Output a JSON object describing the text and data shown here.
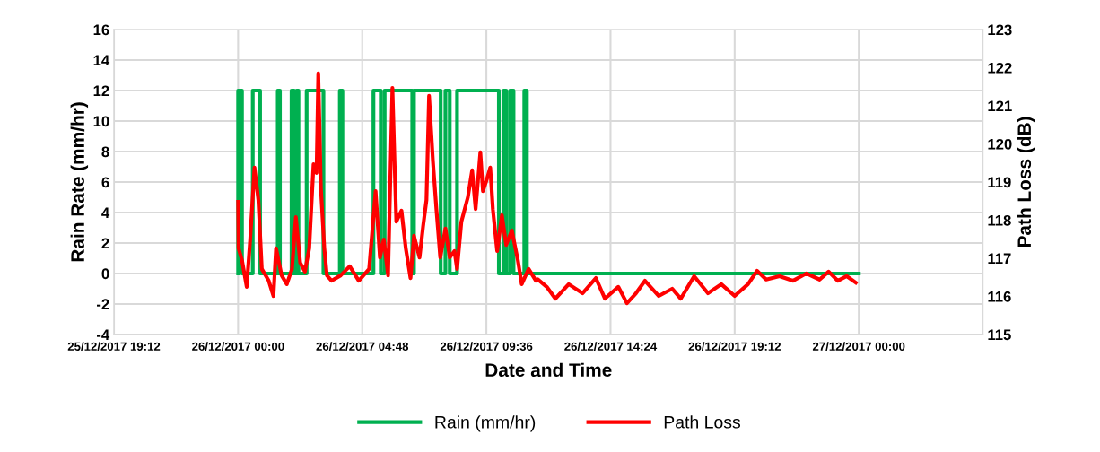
{
  "chart_data": {
    "type": "line",
    "xlabel": "Date and Time",
    "ylabel": "Rain Rate (mm/hr)",
    "y2label": "Path Loss (dB)",
    "xlim": [
      "2017-12-25T19:12",
      "2017-12-27T04:48"
    ],
    "xticks": [
      {
        "value": "2017-12-25T19:12",
        "label": "25/12/2017 19:12"
      },
      {
        "value": "2017-12-26T00:00",
        "label": "26/12/2017 00:00"
      },
      {
        "value": "2017-12-26T04:48",
        "label": "26/12/2017 04:48"
      },
      {
        "value": "2017-12-26T09:36",
        "label": "26/12/2017 09:36"
      },
      {
        "value": "2017-12-26T14:24",
        "label": "26/12/2017 14:24"
      },
      {
        "value": "2017-12-26T19:12",
        "label": "26/12/2017 19:12"
      },
      {
        "value": "2017-12-27T00:00",
        "label": "27/12/2017 00:00"
      }
    ],
    "ylim": [
      -4,
      16
    ],
    "yticks": [
      -4,
      -2,
      0,
      2,
      4,
      6,
      8,
      10,
      12,
      14,
      16
    ],
    "y2lim": [
      115,
      123
    ],
    "y2ticks": [
      115,
      116,
      117,
      118,
      119,
      120,
      121,
      122,
      123
    ],
    "grid": true,
    "legend": "bottom",
    "line_style": "solid",
    "marker": "none",
    "series": [
      {
        "name": "Rain (mm/hr)",
        "color": "#00b050",
        "x": [
          "2017-12-26T00:00",
          "2017-12-26T00:00",
          "2017-12-26T00:09",
          "2017-12-26T00:09",
          "2017-12-26T00:34",
          "2017-12-26T00:34",
          "2017-12-26T00:51",
          "2017-12-26T00:51",
          "2017-12-26T01:32",
          "2017-12-26T01:32",
          "2017-12-26T01:37",
          "2017-12-26T01:37",
          "2017-12-26T02:04",
          "2017-12-26T02:04",
          "2017-12-26T02:10",
          "2017-12-26T02:10",
          "2017-12-26T02:16",
          "2017-12-26T02:16",
          "2017-12-26T02:20",
          "2017-12-26T02:20",
          "2017-12-26T02:39",
          "2017-12-26T02:39",
          "2017-12-26T03:18",
          "2017-12-26T03:18",
          "2017-12-26T03:56",
          "2017-12-26T03:56",
          "2017-12-26T04:02",
          "2017-12-26T04:02",
          "2017-12-26T05:14",
          "2017-12-26T05:14",
          "2017-12-26T05:31",
          "2017-12-26T05:31",
          "2017-12-26T05:40",
          "2017-12-26T05:40",
          "2017-12-26T06:44",
          "2017-12-26T06:44",
          "2017-12-26T06:48",
          "2017-12-26T06:48",
          "2017-12-26T07:50",
          "2017-12-26T07:50",
          "2017-12-26T08:01",
          "2017-12-26T08:01",
          "2017-12-26T08:11",
          "2017-12-26T08:11",
          "2017-12-26T08:28",
          "2017-12-26T08:28",
          "2017-12-26T10:05",
          "2017-12-26T10:05",
          "2017-12-26T10:16",
          "2017-12-26T10:16",
          "2017-12-26T10:22",
          "2017-12-26T10:22",
          "2017-12-26T10:31",
          "2017-12-26T10:31",
          "2017-12-26T10:39",
          "2017-12-26T10:39",
          "2017-12-26T11:04",
          "2017-12-26T11:04",
          "2017-12-26T11:10",
          "2017-12-26T11:10",
          "2017-12-27T00:00"
        ],
        "values": [
          0,
          12,
          12,
          0,
          0,
          12,
          12,
          0,
          0,
          12,
          12,
          0,
          0,
          12,
          12,
          0,
          0,
          12,
          12,
          0,
          0,
          12,
          12,
          0,
          0,
          12,
          12,
          0,
          0,
          12,
          12,
          0,
          0,
          12,
          12,
          0,
          0,
          12,
          12,
          0,
          0,
          12,
          12,
          0,
          0,
          12,
          12,
          0,
          0,
          12,
          12,
          0,
          0,
          12,
          12,
          0,
          0,
          12,
          12,
          0,
          0
        ]
      },
      {
        "name": "Path Loss",
        "color": "#ff0000",
        "axis": "y2",
        "x": [
          "2017-12-26T00:00",
          "2017-12-26T00:01",
          "2017-12-26T00:09",
          "2017-12-26T00:20",
          "2017-12-26T00:28",
          "2017-12-26T00:38",
          "2017-12-26T00:47",
          "2017-12-26T00:55",
          "2017-12-26T01:11",
          "2017-12-26T01:22",
          "2017-12-26T01:28",
          "2017-12-26T01:41",
          "2017-12-26T01:53",
          "2017-12-26T02:05",
          "2017-12-26T02:14",
          "2017-12-26T02:24",
          "2017-12-26T02:35",
          "2017-12-26T02:45",
          "2017-12-26T02:55",
          "2017-12-26T03:02",
          "2017-12-26T03:06",
          "2017-12-26T03:12",
          "2017-12-26T03:20",
          "2017-12-26T03:26",
          "2017-12-26T03:37",
          "2017-12-26T03:58",
          "2017-12-26T04:19",
          "2017-12-26T04:40",
          "2017-12-26T05:04",
          "2017-12-26T05:19",
          "2017-12-26T05:29",
          "2017-12-26T05:38",
          "2017-12-26T05:48",
          "2017-12-26T05:58",
          "2017-12-26T06:07",
          "2017-12-26T06:19",
          "2017-12-26T06:29",
          "2017-12-26T06:40",
          "2017-12-26T06:48",
          "2017-12-26T07:01",
          "2017-12-26T07:09",
          "2017-12-26T07:17",
          "2017-12-26T07:23",
          "2017-12-26T07:32",
          "2017-12-26T07:40",
          "2017-12-26T07:49",
          "2017-12-26T08:01",
          "2017-12-26T08:11",
          "2017-12-26T08:22",
          "2017-12-26T08:28",
          "2017-12-26T08:38",
          "2017-12-26T08:53",
          "2017-12-26T09:03",
          "2017-12-26T09:11",
          "2017-12-26T09:22",
          "2017-12-26T09:28",
          "2017-12-26T09:37",
          "2017-12-26T09:45",
          "2017-12-26T09:51",
          "2017-12-26T10:01",
          "2017-12-26T10:12",
          "2017-12-26T10:22",
          "2017-12-26T10:35",
          "2017-12-26T10:49",
          "2017-12-26T10:58",
          "2017-12-26T11:14",
          "2017-12-26T11:31",
          "2017-12-26T11:35",
          "2017-12-26T11:56",
          "2017-12-26T12:16",
          "2017-12-26T12:47",
          "2017-12-26T13:19",
          "2017-12-26T13:50",
          "2017-12-26T14:11",
          "2017-12-26T14:42",
          "2017-12-26T15:02",
          "2017-12-26T15:23",
          "2017-12-26T15:44",
          "2017-12-26T16:16",
          "2017-12-26T16:47",
          "2017-12-26T17:07",
          "2017-12-26T17:38",
          "2017-12-26T18:10",
          "2017-12-26T18:41",
          "2017-12-26T19:12",
          "2017-12-26T19:43",
          "2017-12-26T20:04",
          "2017-12-26T20:25",
          "2017-12-26T20:56",
          "2017-12-26T21:27",
          "2017-12-26T21:58",
          "2017-12-26T22:29",
          "2017-12-26T22:50",
          "2017-12-26T23:11",
          "2017-12-26T23:32",
          "2017-12-26T23:53"
        ],
        "values": [
          118.48,
          117.26,
          116.95,
          116.25,
          117.49,
          119.38,
          118.53,
          116.72,
          116.41,
          116.01,
          117.26,
          116.55,
          116.32,
          116.72,
          118.08,
          116.88,
          116.65,
          117.26,
          119.47,
          119.24,
          121.85,
          118.84,
          117.26,
          116.55,
          116.41,
          116.55,
          116.79,
          116.41,
          116.72,
          118.76,
          117.02,
          117.49,
          116.55,
          121.47,
          117.96,
          118.25,
          117.26,
          116.48,
          117.59,
          117.02,
          117.82,
          118.53,
          121.26,
          119.54,
          118.29,
          117.02,
          117.78,
          117.02,
          117.19,
          116.72,
          117.96,
          118.6,
          119.31,
          118.29,
          119.78,
          118.76,
          119.07,
          119.38,
          118.29,
          117.19,
          118.13,
          117.35,
          117.73,
          116.95,
          116.32,
          116.72,
          116.41,
          116.45,
          116.25,
          115.94,
          116.32,
          116.08,
          116.48,
          115.94,
          116.25,
          115.82,
          116.08,
          116.41,
          116.01,
          116.2,
          115.94,
          116.53,
          116.08,
          116.32,
          116.01,
          116.32,
          116.67,
          116.44,
          116.53,
          116.41,
          116.6,
          116.44,
          116.65,
          116.41,
          116.53,
          116.36
        ]
      }
    ]
  }
}
